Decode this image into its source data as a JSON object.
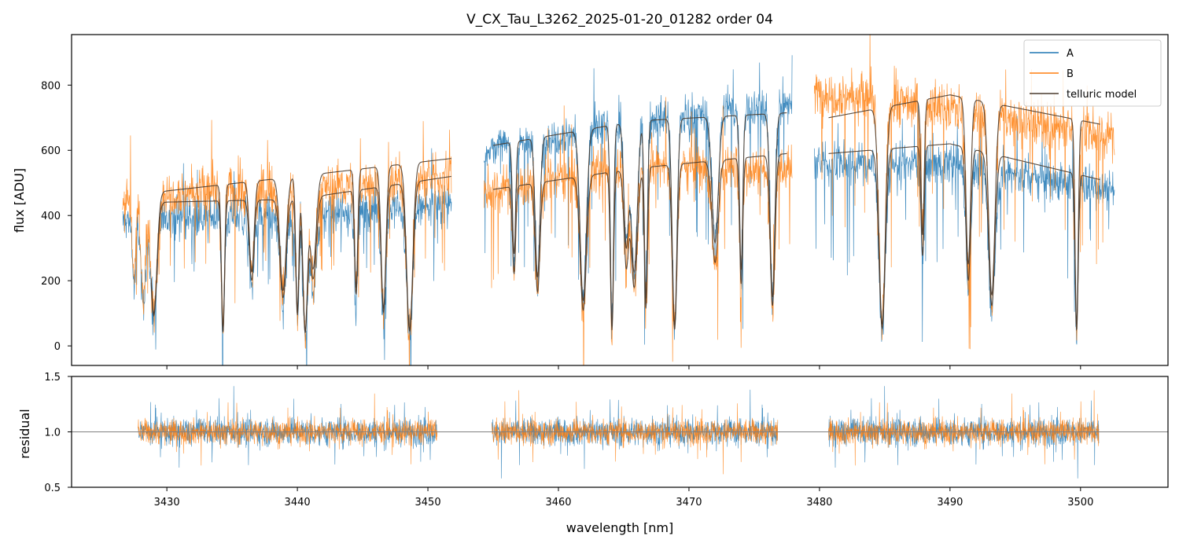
{
  "chart_data": [
    {
      "type": "line",
      "panel": "main",
      "title": "V_CX_Tau_L3262_2025-01-20_01282  order 04",
      "xlabel": "",
      "ylabel": "flux [ADU]",
      "xlim": [
        3422.7,
        3506.7
      ],
      "ylim": [
        -60,
        955
      ],
      "xticks": [
        3430,
        3440,
        3450,
        3460,
        3470,
        3480,
        3490,
        3500
      ],
      "yticks": [
        0,
        200,
        400,
        600,
        800
      ],
      "ytick_labels": [
        "0",
        "200",
        "400",
        "600",
        "800"
      ],
      "segments": [
        [
          3426.6,
          3451.8
        ],
        [
          3454.3,
          3477.9
        ],
        [
          3479.6,
          3502.6
        ]
      ],
      "series": [
        {
          "name": "A",
          "color": "#1f77b4",
          "level": [
            [
              3426.6,
              380
            ],
            [
              3430,
              400
            ],
            [
              3440,
              390
            ],
            [
              3451.8,
              440
            ],
            [
              3454.3,
              600
            ],
            [
              3466,
              690
            ],
            [
              3477.9,
              740
            ],
            [
              3479.6,
              560
            ],
            [
              3490,
              560
            ],
            [
              3502.6,
              480
            ]
          ],
          "noise": 60
        },
        {
          "name": "B",
          "color": "#ff7f0e",
          "level": [
            [
              3426.6,
              440
            ],
            [
              3430,
              470
            ],
            [
              3440,
              480
            ],
            [
              3451.8,
              520
            ],
            [
              3454.3,
              470
            ],
            [
              3466,
              560
            ],
            [
              3477.9,
              540
            ],
            [
              3479.6,
              780
            ],
            [
              3490,
              730
            ],
            [
              3502.6,
              640
            ]
          ],
          "noise": 70
        },
        {
          "name": "telluric model",
          "color": "#4a3b2e",
          "continua": [
            [
              [
                3428.8,
                440
              ],
              [
                3440,
                450
              ],
              [
                3451.8,
                520
              ]
            ],
            [
              [
                3428.8,
                470
              ],
              [
                3440,
                520
              ],
              [
                3451.8,
                575
              ]
            ],
            [
              [
                3455.0,
                480
              ],
              [
                3466,
                545
              ],
              [
                3477.5,
                590
              ]
            ],
            [
              [
                3455.0,
                615
              ],
              [
                3466,
                690
              ],
              [
                3477.5,
                715
              ]
            ],
            [
              [
                3480.7,
                590
              ],
              [
                3490,
                620
              ],
              [
                3501.5,
                510
              ]
            ],
            [
              [
                3480.7,
                700
              ],
              [
                3490,
                770
              ],
              [
                3501.5,
                680
              ]
            ]
          ]
        }
      ],
      "absorption_lines": [
        3427.5,
        3428.2,
        3429.0,
        3434.3,
        3436.5,
        3438.9,
        3440.0,
        3440.6,
        3441.2,
        3444.5,
        3446.6,
        3448.6,
        3456.6,
        3458.4,
        3461.9,
        3464.1,
        3465.2,
        3465.8,
        3466.7,
        3468.9,
        3472.0,
        3474.0,
        3476.4,
        3484.8,
        3487.9,
        3491.4,
        3493.2,
        3499.7
      ],
      "legend": {
        "position": "top-right",
        "entries": [
          "A",
          "B",
          "telluric model"
        ]
      }
    },
    {
      "type": "line",
      "panel": "residual",
      "xlabel": "wavelength [nm]",
      "ylabel": "residual",
      "xlim": [
        3422.7,
        3506.7
      ],
      "ylim": [
        0.5,
        1.5
      ],
      "xticks": [
        3430,
        3440,
        3450,
        3460,
        3470,
        3480,
        3490,
        3500
      ],
      "xtick_labels": [
        "3430",
        "3440",
        "3450",
        "3460",
        "3470",
        "3480",
        "3490",
        "3500"
      ],
      "yticks": [
        0.5,
        1.0,
        1.5
      ],
      "ytick_labels": [
        "0.5",
        "1.0",
        "1.5"
      ],
      "reference_line": 1.0,
      "segments": [
        [
          3427.8,
          3450.7
        ],
        [
          3454.9,
          3476.8
        ],
        [
          3480.7,
          3501.4
        ]
      ],
      "series": [
        {
          "name": "A",
          "color": "#1f77b4",
          "center": 1.0,
          "spread": 0.22
        },
        {
          "name": "B",
          "color": "#ff7f0e",
          "center": 1.0,
          "spread": 0.2
        }
      ]
    }
  ]
}
